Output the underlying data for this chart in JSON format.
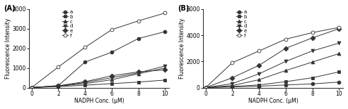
{
  "x": [
    0,
    2,
    4,
    6,
    8,
    10
  ],
  "panel_A": {
    "title": "(A)",
    "ylabel": "Fluorescence Intensity",
    "xlabel": "NADPH Conc. (μM)",
    "ylim": [
      0,
      4000
    ],
    "yticks": [
      0,
      1000,
      2000,
      3000,
      4000
    ],
    "xticks": [
      0,
      2,
      4,
      6,
      8,
      10
    ],
    "series": {
      "a": [
        0,
        100,
        1300,
        1800,
        2500,
        2850
      ],
      "b": [
        0,
        50,
        120,
        200,
        280,
        380
      ],
      "c": [
        0,
        70,
        200,
        400,
        700,
        1000
      ],
      "d": [
        0,
        80,
        260,
        500,
        750,
        1100
      ],
      "e": [
        0,
        90,
        300,
        600,
        800,
        900
      ],
      "f": [
        0,
        1050,
        2050,
        2950,
        3400,
        3800
      ]
    },
    "markers": {
      "a": {
        "marker": "o",
        "filled": true
      },
      "b": {
        "marker": "s",
        "filled": true
      },
      "c": {
        "marker": "^",
        "filled": true
      },
      "d": {
        "marker": "v",
        "filled": true
      },
      "e": {
        "marker": "D",
        "filled": true
      },
      "f": {
        "marker": "o",
        "filled": false
      }
    }
  },
  "panel_B": {
    "title": "(B)",
    "ylabel": "Fluorescence Intensity",
    "xlabel": "NADPH Conc. (μM)",
    "ylim": [
      0,
      6000
    ],
    "yticks": [
      0,
      2000,
      4000,
      6000
    ],
    "xticks": [
      0,
      2,
      4,
      6,
      8,
      10
    ],
    "series": {
      "a": [
        0,
        50,
        100,
        200,
        280,
        420
      ],
      "b": [
        0,
        80,
        200,
        450,
        750,
        1200
      ],
      "c": [
        0,
        150,
        600,
        1300,
        1950,
        2600
      ],
      "d": [
        0,
        300,
        1050,
        2000,
        2800,
        3400
      ],
      "e": [
        0,
        750,
        1700,
        3000,
        3800,
        4500
      ],
      "f": [
        0,
        1900,
        2800,
        3700,
        4200,
        4600
      ]
    },
    "markers": {
      "a": {
        "marker": "o",
        "filled": true
      },
      "b": {
        "marker": "s",
        "filled": true
      },
      "c": {
        "marker": "^",
        "filled": true
      },
      "d": {
        "marker": "v",
        "filled": true
      },
      "e": {
        "marker": "D",
        "filled": true
      },
      "f": {
        "marker": "o",
        "filled": false
      }
    }
  },
  "line_color": "#333333",
  "marker_size": 3.5,
  "font_size": 5.5
}
